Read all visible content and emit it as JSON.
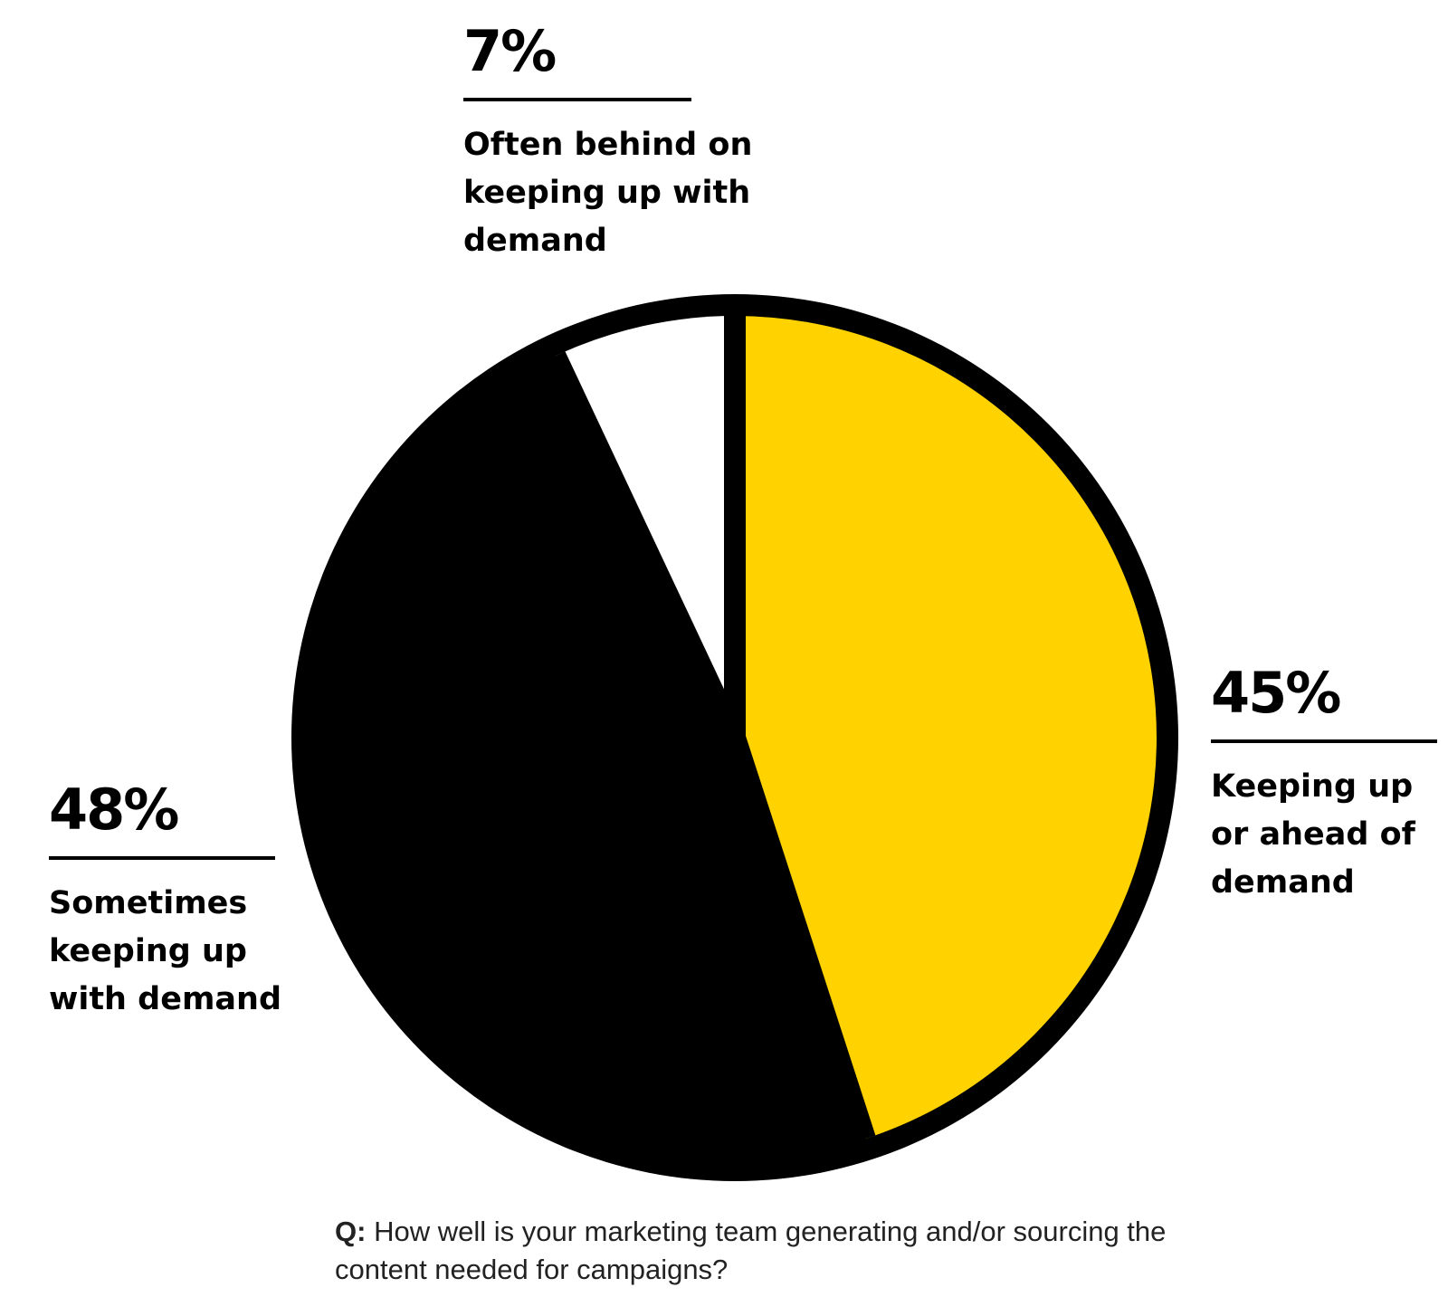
{
  "chart_data": {
    "type": "pie",
    "slices": [
      {
        "label": "Keeping up or ahead of demand",
        "value": 45,
        "display": "45%",
        "color": "#FFD200"
      },
      {
        "label": "Sometimes keeping up with demand",
        "value": 48,
        "display": "48%",
        "color": "#000000"
      },
      {
        "label": "Often behind on keeping up with demand",
        "value": 7,
        "display": "7%",
        "color": "#FFFFFF"
      }
    ],
    "question_prefix": "Q:",
    "question": "How well is your marketing team generating and/or sourcing the content needed for campaigns?"
  },
  "callouts": {
    "often_behind": {
      "pct": "7%",
      "lines": [
        "Often behind on",
        "keeping up with",
        "demand"
      ]
    },
    "keeping_up": {
      "pct": "45%",
      "lines": [
        "Keeping up",
        "or ahead of",
        "demand"
      ]
    },
    "sometimes": {
      "pct": "48%",
      "lines": [
        "Sometimes",
        "keeping up",
        "with demand"
      ]
    }
  },
  "colors": {
    "accent": "#FFD200",
    "outline": "#000000",
    "background": "#FFFFFF"
  }
}
